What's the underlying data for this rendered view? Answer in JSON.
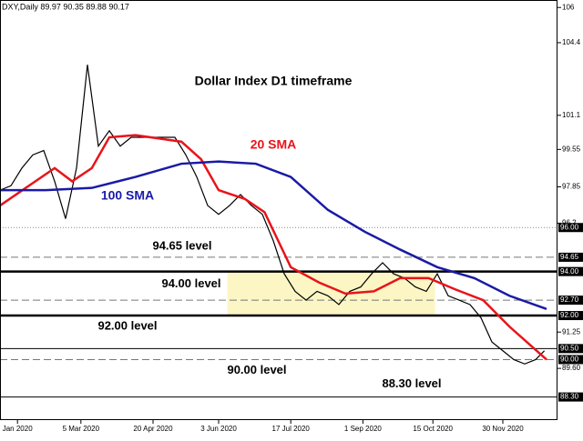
{
  "chart_data": {
    "type": "line",
    "header": "DXY,Daily  89.97 90.35 89.88 90.17",
    "title": "Dollar Index D1 timeframe",
    "xlim": [
      0,
      255
    ],
    "ylim": [
      87.25,
      106.34
    ],
    "xticks": [
      {
        "value": 8,
        "label": "Jan 2020"
      },
      {
        "value": 37,
        "label": "5 Mar 2020"
      },
      {
        "value": 70,
        "label": "20 Apr 2020"
      },
      {
        "value": 100,
        "label": "3 Jun 2020"
      },
      {
        "value": 133,
        "label": "17 Jul 2020"
      },
      {
        "value": 166,
        "label": "1 Sep 2020"
      },
      {
        "value": 198,
        "label": "15 Oct 2020"
      },
      {
        "value": 230,
        "label": "30 Nov 2020"
      }
    ],
    "yticks": [
      106,
      104.4,
      101.1,
      99.55,
      97.85,
      96.2,
      91.25,
      {
        "value": 89.6,
        "label": "89.60"
      }
    ],
    "highlight": {
      "x": [
        104,
        199
      ],
      "y": [
        92,
        94
      ],
      "color": "#fbf6c4"
    },
    "levels": [
      {
        "value": 96,
        "label": "96.00",
        "style": "dotted"
      },
      {
        "value": 94.65,
        "label": "94.65",
        "style": "dashed",
        "text": "94.65 level"
      },
      {
        "value": 94,
        "label": "94.00",
        "style": "thick",
        "text": "94.00 level"
      },
      {
        "value": 92.7,
        "label": "92.70",
        "style": "dashed"
      },
      {
        "value": 92,
        "label": "92.00",
        "style": "thick",
        "text": "92.00 level"
      },
      {
        "value": 90.5,
        "label": "90.50",
        "style": "solid"
      },
      {
        "value": 90,
        "label": "90.00",
        "style": "dashed",
        "text": "90.00 level"
      },
      {
        "value": 88.3,
        "label": "88.30",
        "style": "solid",
        "text": "88.30 level"
      }
    ],
    "series": [
      {
        "name": "DXY",
        "color": "#000000",
        "x": [
          0,
          5,
          10,
          15,
          20,
          25,
          30,
          35,
          40,
          45,
          50,
          55,
          60,
          65,
          70,
          75,
          80,
          85,
          90,
          95,
          100,
          105,
          110,
          115,
          120,
          125,
          130,
          135,
          140,
          145,
          150,
          155,
          160,
          165,
          170,
          175,
          180,
          185,
          190,
          195,
          200,
          205,
          210,
          215,
          220,
          225,
          230,
          235,
          240,
          245,
          249
        ],
        "values": [
          97.7,
          97.9,
          98.7,
          99.3,
          99.5,
          98.1,
          96.4,
          98.7,
          103.4,
          99.7,
          100.4,
          99.7,
          100.1,
          100.1,
          100.1,
          100.1,
          100.1,
          99.3,
          98.3,
          97.0,
          96.6,
          97.0,
          97.5,
          97.0,
          96.6,
          95.4,
          93.9,
          93.1,
          92.7,
          93.1,
          92.9,
          92.5,
          93.1,
          93.3,
          93.9,
          94.4,
          93.9,
          93.7,
          93.3,
          93.1,
          93.9,
          92.9,
          92.7,
          92.5,
          91.9,
          90.8,
          90.4,
          90.0,
          89.8,
          90.0,
          90.4
        ]
      },
      {
        "name": "20 SMA",
        "color": "#e8141b",
        "x": [
          0,
          25,
          33,
          42,
          50,
          62,
          83,
          92,
          100,
          112,
          121,
          133,
          146,
          158,
          171,
          183,
          196,
          208,
          221,
          233,
          250
        ],
        "values": [
          97.0,
          98.7,
          98.1,
          98.7,
          100.1,
          100.2,
          99.9,
          99.1,
          97.7,
          97.3,
          96.7,
          94.2,
          93.5,
          93.0,
          93.1,
          93.7,
          93.7,
          93.2,
          92.7,
          91.5,
          90.0
        ]
      },
      {
        "name": "100 SMA",
        "color": "#1a1aa6",
        "x": [
          0,
          21,
          42,
          62,
          83,
          100,
          117,
          133,
          150,
          167,
          183,
          200,
          217,
          233,
          250
        ],
        "values": [
          97.7,
          97.7,
          97.8,
          98.3,
          98.9,
          99.0,
          98.9,
          98.3,
          96.8,
          95.8,
          95.0,
          94.2,
          93.7,
          92.9,
          92.3
        ]
      }
    ]
  }
}
